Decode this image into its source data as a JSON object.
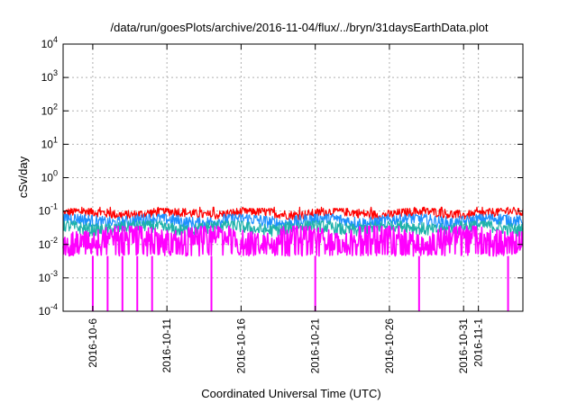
{
  "chart_data": {
    "type": "line",
    "title": "/data/run/goesPlots/archive/2016-11-04/flux/../bryn/31daysEarthData.plot",
    "xlabel": "Coordinated Universal Time (UTC)",
    "ylabel": "cSv/day",
    "yscale": "log",
    "ylim": [
      0.0001,
      10000
    ],
    "xlim": [
      "2016-10-04",
      "2016-11-04"
    ],
    "grid": true,
    "legend": "none",
    "y_ticks": [
      {
        "value": 0.0001,
        "mant": "10",
        "exp": "-4"
      },
      {
        "value": 0.001,
        "mant": "10",
        "exp": "-3"
      },
      {
        "value": 0.01,
        "mant": "10",
        "exp": "-2"
      },
      {
        "value": 0.1,
        "mant": "10",
        "exp": "-1"
      },
      {
        "value": 1,
        "mant": "10",
        "exp": "0"
      },
      {
        "value": 10,
        "mant": "10",
        "exp": "1"
      },
      {
        "value": 100,
        "mant": "10",
        "exp": "2"
      },
      {
        "value": 1000,
        "mant": "10",
        "exp": "3"
      },
      {
        "value": 10000,
        "mant": "10",
        "exp": "4"
      }
    ],
    "x_ticks": [
      {
        "date": "2016-10-06",
        "label": "2016-10-6"
      },
      {
        "date": "2016-10-11",
        "label": "2016-10-11"
      },
      {
        "date": "2016-10-16",
        "label": "2016-10-16"
      },
      {
        "date": "2016-10-21",
        "label": "2016-10-21"
      },
      {
        "date": "2016-10-26",
        "label": "2016-10-26"
      },
      {
        "date": "2016-10-31",
        "label": "2016-10-31"
      },
      {
        "date": "2016-11-01",
        "label": "2016-11-1"
      }
    ],
    "series": [
      {
        "color": "#ff0000",
        "typical_range": [
          0.05,
          0.12
        ],
        "peak": 0.13
      },
      {
        "color": "#1e90ff",
        "typical_range": [
          0.025,
          0.08
        ]
      },
      {
        "color": "#20b2aa",
        "typical_range": [
          0.015,
          0.05
        ]
      },
      {
        "color": "#ff00ff",
        "typical_range": [
          0.005,
          0.035
        ],
        "floor": 0.0045,
        "dropouts": [
          {
            "date": "2016-10-06",
            "value": 0.0001
          },
          {
            "date": "2016-10-07",
            "value": 0.0001
          },
          {
            "date": "2016-10-08",
            "value": 0.0001
          },
          {
            "date": "2016-10-09",
            "value": 0.0001
          },
          {
            "date": "2016-10-10",
            "value": 0.0001
          },
          {
            "date": "2016-10-14",
            "value": 0.0001
          },
          {
            "date": "2016-10-21",
            "value": 0.0001
          },
          {
            "date": "2016-10-28",
            "value": 0.0001
          },
          {
            "date": "2016-11-03",
            "value": 0.0001
          }
        ]
      }
    ]
  }
}
